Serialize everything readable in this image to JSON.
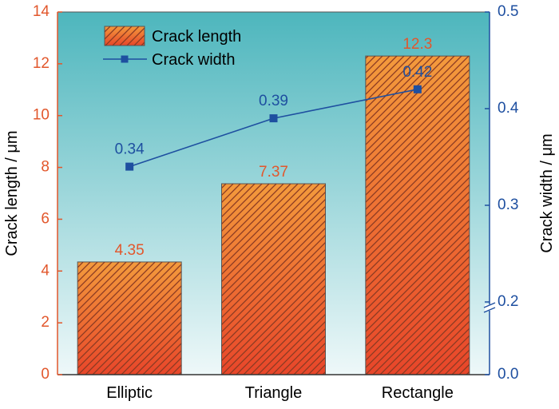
{
  "chart_data": {
    "type": "bar",
    "categories": [
      "Elliptic",
      "Triangle",
      "Rectangle"
    ],
    "series": [
      {
        "name": "Crack length",
        "type": "bar",
        "axis": "left",
        "values": [
          4.35,
          7.37,
          12.3
        ],
        "value_labels": [
          "4.35",
          "7.37",
          "12.3"
        ]
      },
      {
        "name": "Crack width",
        "type": "line",
        "axis": "right",
        "values": [
          0.34,
          0.39,
          0.42
        ],
        "value_labels": [
          "0.34",
          "0.39",
          "0.42"
        ]
      }
    ],
    "ylabel": "Crack length / μm",
    "y2label": "Crack width / μm",
    "ylim": [
      0,
      14
    ],
    "yticks": [
      "0",
      "2",
      "4",
      "6",
      "8",
      "10",
      "12",
      "14"
    ],
    "y2lim": [
      0.0,
      0.5
    ],
    "y2ticks": [
      "0.0",
      "0.2",
      "0.3",
      "0.4",
      "0.5"
    ],
    "y2_axis_break": [
      0.0,
      0.2
    ],
    "legend_position": "top-left",
    "grid": false,
    "colors": {
      "bar_top": "#f39a3c",
      "bar_bottom": "#e8462a",
      "hatch": "#8a3a22",
      "bar_edge": "#555555",
      "line": "#1e4fa0",
      "left_axis": "#e2572c",
      "right_axis": "#1e4fa0",
      "bg_top": "#4db6bd",
      "bg_bottom": "#eef8f9"
    }
  }
}
